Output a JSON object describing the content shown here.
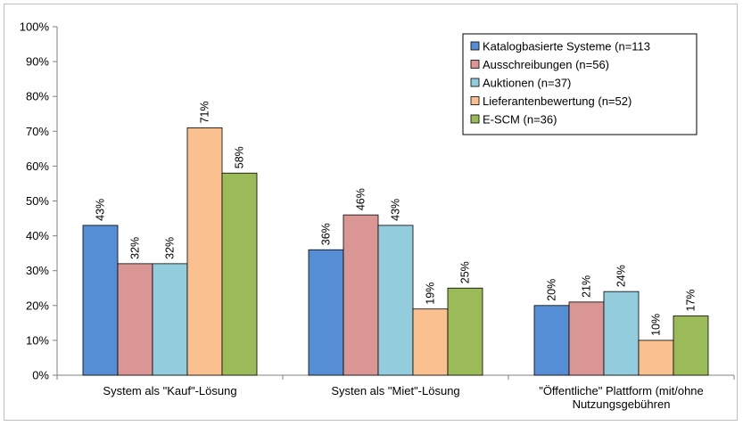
{
  "chart_data": {
    "type": "bar",
    "categories": [
      [
        "System als \"Kauf\"-Lösung"
      ],
      [
        "Systen als \"Miet\"-Lösung"
      ],
      [
        "\"Öffentliche\" Plattform (mit/ohne",
        "Nutzungsgebühren"
      ]
    ],
    "series": [
      {
        "name": "Katalogbasierte Systeme (n=113",
        "color": "#558ed5",
        "values": [
          43,
          36,
          20
        ],
        "labels": [
          "43%",
          "36%",
          "20%"
        ]
      },
      {
        "name": "Ausschreibungen (n=56)",
        "color": "#d99694",
        "values": [
          32,
          46,
          21
        ],
        "labels": [
          "32%",
          "46%",
          "21%"
        ]
      },
      {
        "name": "Auktionen (n=37)",
        "color": "#93cddd",
        "values": [
          32,
          43,
          24
        ],
        "labels": [
          "32%",
          "43%",
          "24%"
        ]
      },
      {
        "name": "Lieferantenbewertung (n=52)",
        "color": "#fac090",
        "values": [
          71,
          19,
          10
        ],
        "labels": [
          "71%",
          "19%",
          "10%"
        ]
      },
      {
        "name": "E-SCM (n=36)",
        "color": "#9bbb59",
        "values": [
          58,
          25,
          17
        ],
        "labels": [
          "58%",
          "25%",
          "17%"
        ]
      }
    ],
    "yticks": [
      "0%",
      "10%",
      "20%",
      "30%",
      "40%",
      "50%",
      "60%",
      "70%",
      "80%",
      "90%",
      "100%"
    ],
    "ylim": [
      0,
      100
    ],
    "grid": false,
    "legend_position": "top-right"
  }
}
